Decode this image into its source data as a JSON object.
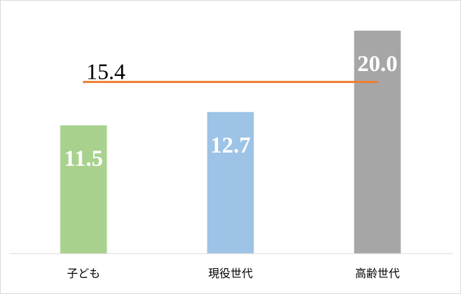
{
  "chart_data": {
    "type": "bar",
    "categories": [
      "子ども",
      "現役世代",
      "高齢世代"
    ],
    "values": [
      11.5,
      12.7,
      20.0
    ],
    "value_labels": [
      "11.5",
      "12.7",
      "20.0"
    ],
    "bar_colors": [
      "#a9d18e",
      "#9dc3e6",
      "#a6a6a6"
    ],
    "reference_line": {
      "value": 15.4,
      "label": "15.4",
      "color": "#ed7d31"
    },
    "ylim": [
      0,
      22
    ],
    "title": "",
    "xlabel": "",
    "ylabel": "",
    "grid": false,
    "legend": false
  }
}
